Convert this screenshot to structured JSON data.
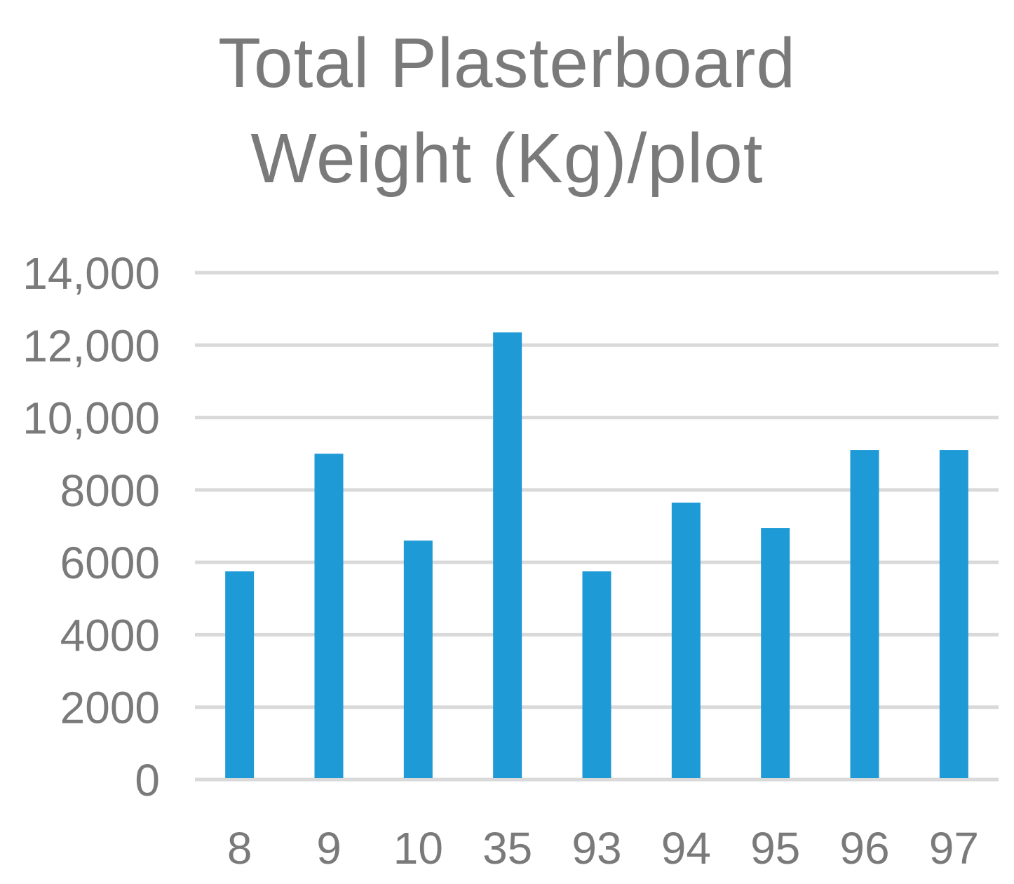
{
  "chart_data": {
    "type": "bar",
    "title_lines": [
      "Total Plasterboard",
      "Weight (Kg)/plot"
    ],
    "categories": [
      "8",
      "9",
      "10",
      "35",
      "93",
      "94",
      "95",
      "96",
      "97"
    ],
    "values": [
      5750,
      9000,
      6600,
      12350,
      5750,
      7650,
      6950,
      9100,
      9100
    ],
    "xlabel": "",
    "ylabel": "",
    "ylim": [
      0,
      14000
    ],
    "yticks": [
      0,
      2000,
      4000,
      6000,
      8000,
      10000,
      12000,
      14000
    ],
    "ytick_labels": [
      "0",
      "2000",
      "4000",
      "6000",
      "8000",
      "10,000",
      "12,000",
      "14,000"
    ],
    "grid": true,
    "legend": "none",
    "colors": {
      "bar": "#1e9ad6",
      "grid": "#d9d9d9",
      "text": "#7a7a7a"
    }
  }
}
